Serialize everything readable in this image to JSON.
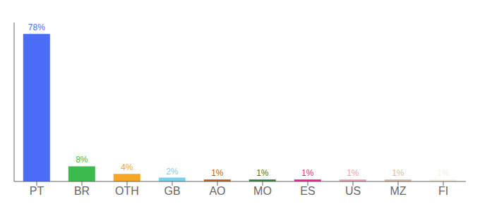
{
  "chart_data": {
    "type": "bar",
    "categories": [
      "PT",
      "BR",
      "OTH",
      "GB",
      "AO",
      "MO",
      "ES",
      "US",
      "MZ",
      "FI"
    ],
    "values": [
      78,
      8,
      4,
      2,
      1,
      1,
      1,
      1,
      1,
      1
    ],
    "value_labels": [
      "78%",
      "8%",
      "4%",
      "2%",
      "1%",
      "1%",
      "1%",
      "1%",
      "1%",
      "1%"
    ],
    "colors": [
      "#4a6cf7",
      "#3dba4e",
      "#f5a623",
      "#7ecfed",
      "#b35c1e",
      "#2e7d32",
      "#e91e8c",
      "#e8a0b0",
      "#d9b8a8",
      "#f5f0e0"
    ],
    "ylim": [
      0,
      84
    ],
    "grid": false,
    "data_labels": true,
    "tick_labels": "x"
  }
}
